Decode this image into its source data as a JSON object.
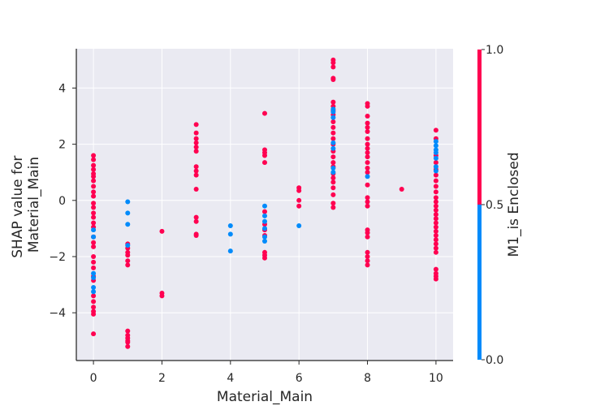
{
  "chart_data": {
    "type": "scatter",
    "xlabel": "Material_Main",
    "ylabel_lines": [
      "SHAP value for",
      "Material_Main"
    ],
    "xticks": [
      0,
      2,
      4,
      6,
      8,
      10
    ],
    "yticks": [
      -4,
      -2,
      0,
      2,
      4
    ],
    "xlim": [
      -0.5,
      10.5
    ],
    "ylim": [
      -5.7,
      5.4
    ],
    "grid": true,
    "colorbar": {
      "label": "M1_is Enclosed",
      "ticks": [
        "0.0",
        "0.5",
        "1.0"
      ],
      "tick_values": [
        0,
        0.5,
        1
      ],
      "low_color": "#008bfb",
      "high_color": "#ff0051"
    },
    "series": [
      {
        "color_value": 1,
        "points": [
          [
            0,
            1.6
          ],
          [
            0,
            1.45
          ],
          [
            0,
            1.25
          ],
          [
            0,
            1.1
          ],
          [
            0,
            0.95
          ],
          [
            0,
            0.85
          ],
          [
            0,
            0.7
          ],
          [
            0,
            0.5
          ],
          [
            0,
            0.3
          ],
          [
            0,
            0.15
          ],
          [
            0,
            -0.1
          ],
          [
            0,
            -0.25
          ],
          [
            0,
            -0.45
          ],
          [
            0,
            -0.6
          ],
          [
            0,
            -0.8
          ],
          [
            0,
            -0.95
          ],
          [
            0,
            -1.3
          ],
          [
            0,
            -1.5
          ],
          [
            0,
            -1.65
          ],
          [
            0,
            -2.0
          ],
          [
            0,
            -2.2
          ],
          [
            0,
            -2.4
          ],
          [
            0,
            -2.7
          ],
          [
            0,
            -2.85
          ],
          [
            0,
            -3.4
          ],
          [
            0,
            -3.6
          ],
          [
            0,
            -3.8
          ],
          [
            0,
            -3.95
          ],
          [
            0,
            -4.05
          ],
          [
            0,
            -4.75
          ],
          [
            1,
            -1.55
          ],
          [
            1,
            -1.7
          ],
          [
            1,
            -1.85
          ],
          [
            1,
            -1.95
          ],
          [
            1,
            -2.15
          ],
          [
            1,
            -2.3
          ],
          [
            1,
            -4.65
          ],
          [
            1,
            -4.8
          ],
          [
            1,
            -4.9
          ],
          [
            1,
            -5.0
          ],
          [
            1,
            -5.05
          ],
          [
            1,
            -5.2
          ],
          [
            2,
            -1.1
          ],
          [
            2,
            -3.3
          ],
          [
            2,
            -3.4
          ],
          [
            3,
            2.7
          ],
          [
            3,
            2.4
          ],
          [
            3,
            2.2
          ],
          [
            3,
            2.05
          ],
          [
            3,
            1.9
          ],
          [
            3,
            1.75
          ],
          [
            3,
            1.2
          ],
          [
            3,
            1.05
          ],
          [
            3,
            0.9
          ],
          [
            3,
            0.4
          ],
          [
            3,
            -0.6
          ],
          [
            3,
            -0.75
          ],
          [
            3,
            -1.2
          ],
          [
            3,
            -1.25
          ],
          [
            5,
            3.1
          ],
          [
            5,
            1.8
          ],
          [
            5,
            1.7
          ],
          [
            5,
            1.6
          ],
          [
            5,
            1.35
          ],
          [
            5,
            -0.4
          ],
          [
            5,
            -0.85
          ],
          [
            5,
            -1.05
          ],
          [
            5,
            -1.25
          ],
          [
            5,
            -1.85
          ],
          [
            5,
            -1.95
          ],
          [
            5,
            -2.05
          ],
          [
            6,
            0.45
          ],
          [
            6,
            0.35
          ],
          [
            6,
            0.0
          ],
          [
            6,
            -0.2
          ],
          [
            7,
            5.0
          ],
          [
            7,
            4.9
          ],
          [
            7,
            4.75
          ],
          [
            7,
            4.35
          ],
          [
            7,
            4.3
          ],
          [
            7,
            3.5
          ],
          [
            7,
            3.35
          ],
          [
            7,
            3.2
          ],
          [
            7,
            3.05
          ],
          [
            7,
            2.8
          ],
          [
            7,
            2.6
          ],
          [
            7,
            2.4
          ],
          [
            7,
            2.2
          ],
          [
            7,
            2.0
          ],
          [
            7,
            1.75
          ],
          [
            7,
            1.55
          ],
          [
            7,
            1.35
          ],
          [
            7,
            1.2
          ],
          [
            7,
            0.95
          ],
          [
            7,
            0.8
          ],
          [
            7,
            0.65
          ],
          [
            7,
            0.45
          ],
          [
            7,
            0.2
          ],
          [
            7,
            -0.1
          ],
          [
            7,
            -0.25
          ],
          [
            8,
            3.45
          ],
          [
            8,
            3.35
          ],
          [
            8,
            3.0
          ],
          [
            8,
            2.75
          ],
          [
            8,
            2.6
          ],
          [
            8,
            2.45
          ],
          [
            8,
            2.2
          ],
          [
            8,
            2.0
          ],
          [
            8,
            1.85
          ],
          [
            8,
            1.7
          ],
          [
            8,
            1.55
          ],
          [
            8,
            1.35
          ],
          [
            8,
            1.15
          ],
          [
            8,
            1.0
          ],
          [
            8,
            0.55
          ],
          [
            8,
            0.1
          ],
          [
            8,
            -0.05
          ],
          [
            8,
            -0.2
          ],
          [
            8,
            -1.05
          ],
          [
            8,
            -1.15
          ],
          [
            8,
            -1.3
          ],
          [
            8,
            -1.85
          ],
          [
            8,
            -2.0
          ],
          [
            8,
            -2.15
          ],
          [
            8,
            -2.3
          ],
          [
            9,
            0.4
          ],
          [
            10,
            2.5
          ],
          [
            10,
            2.2
          ],
          [
            10,
            1.6
          ],
          [
            10,
            1.35
          ],
          [
            10,
            1.1
          ],
          [
            10,
            0.9
          ],
          [
            10,
            0.7
          ],
          [
            10,
            0.5
          ],
          [
            10,
            0.3
          ],
          [
            10,
            0.1
          ],
          [
            10,
            -0.05
          ],
          [
            10,
            -0.2
          ],
          [
            10,
            -0.35
          ],
          [
            10,
            -0.5
          ],
          [
            10,
            -0.65
          ],
          [
            10,
            -0.8
          ],
          [
            10,
            -0.95
          ],
          [
            10,
            -1.1
          ],
          [
            10,
            -1.25
          ],
          [
            10,
            -1.4
          ],
          [
            10,
            -1.55
          ],
          [
            10,
            -1.7
          ],
          [
            10,
            -1.85
          ],
          [
            10,
            -2.45
          ],
          [
            10,
            -2.6
          ],
          [
            10,
            -2.7
          ],
          [
            10,
            -2.8
          ]
        ]
      },
      {
        "color_value": 0,
        "points": [
          [
            0,
            -1.05
          ],
          [
            0,
            -1.3
          ],
          [
            0,
            -2.6
          ],
          [
            0,
            -2.75
          ],
          [
            0,
            -3.1
          ],
          [
            0,
            -3.25
          ],
          [
            1,
            -0.05
          ],
          [
            1,
            -0.45
          ],
          [
            1,
            -0.85
          ],
          [
            1,
            -1.6
          ],
          [
            4,
            -0.9
          ],
          [
            4,
            -1.2
          ],
          [
            4,
            -1.8
          ],
          [
            5,
            -0.2
          ],
          [
            5,
            -0.55
          ],
          [
            5,
            -0.75
          ],
          [
            5,
            -1.0
          ],
          [
            5,
            -1.3
          ],
          [
            5,
            -1.45
          ],
          [
            6,
            -0.9
          ],
          [
            7,
            3.25
          ],
          [
            7,
            3.15
          ],
          [
            7,
            2.95
          ],
          [
            7,
            2.05
          ],
          [
            7,
            1.85
          ],
          [
            7,
            1.15
          ],
          [
            7,
            1.0
          ],
          [
            8,
            0.85
          ],
          [
            10,
            2.1
          ],
          [
            10,
            1.95
          ],
          [
            10,
            1.8
          ],
          [
            10,
            1.7
          ],
          [
            10,
            1.5
          ],
          [
            10,
            1.2
          ],
          [
            10,
            1.05
          ]
        ]
      }
    ]
  }
}
